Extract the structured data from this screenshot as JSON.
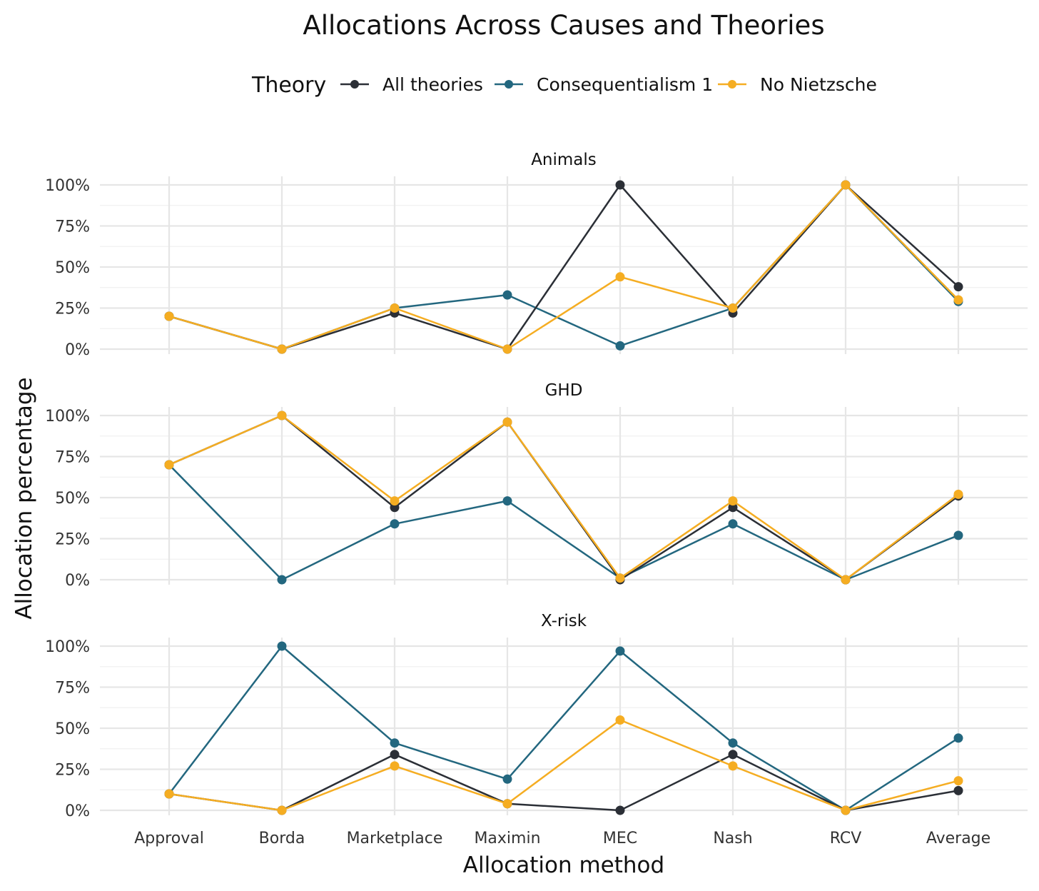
{
  "chart_data": {
    "type": "line",
    "title": "Allocations Across Causes and Theories",
    "xlabel": "Allocation method",
    "ylabel": "Allocation percentage",
    "legend": {
      "title": "Theory",
      "position": "top",
      "entries": [
        {
          "name": "All theories",
          "color": "#2b2f36"
        },
        {
          "name": "Consequentialism 1",
          "color": "#23677f"
        },
        {
          "name": "No Nietzsche",
          "color": "#f5ad22"
        }
      ]
    },
    "categories": [
      "Approval",
      "Borda",
      "Marketplace",
      "Maximin",
      "MEC",
      "Nash",
      "RCV",
      "Average"
    ],
    "ylim": [
      0,
      100
    ],
    "yticks": [
      0,
      25,
      50,
      75,
      100
    ],
    "ytick_labels": [
      "0%",
      "25%",
      "50%",
      "75%",
      "100%"
    ],
    "panels": [
      {
        "name": "Animals",
        "series": [
          {
            "name": "Consequentialism 1",
            "values": [
              20,
              0,
              25,
              33,
              2,
              25,
              100,
              29
            ]
          },
          {
            "name": "All theories",
            "values": [
              20,
              0,
              22,
              0,
              100,
              22,
              100,
              38
            ]
          },
          {
            "name": "No Nietzsche",
            "values": [
              20,
              0,
              25,
              0,
              44,
              25,
              100,
              30
            ]
          }
        ]
      },
      {
        "name": "GHD",
        "series": [
          {
            "name": "Consequentialism 1",
            "values": [
              70,
              0,
              34,
              48,
              1,
              34,
              0,
              27
            ]
          },
          {
            "name": "All theories",
            "values": [
              70,
              100,
              44,
              96,
              0,
              44,
              0,
              51
            ]
          },
          {
            "name": "No Nietzsche",
            "values": [
              70,
              100,
              48,
              96,
              1,
              48,
              0,
              52
            ]
          }
        ]
      },
      {
        "name": "X-risk",
        "series": [
          {
            "name": "Consequentialism 1",
            "values": [
              10,
              100,
              41,
              19,
              97,
              41,
              0,
              44
            ]
          },
          {
            "name": "All theories",
            "values": [
              10,
              0,
              34,
              4,
              0,
              34,
              0,
              12
            ]
          },
          {
            "name": "No Nietzsche",
            "values": [
              10,
              0,
              27,
              4,
              55,
              27,
              0,
              18
            ]
          }
        ]
      }
    ]
  }
}
